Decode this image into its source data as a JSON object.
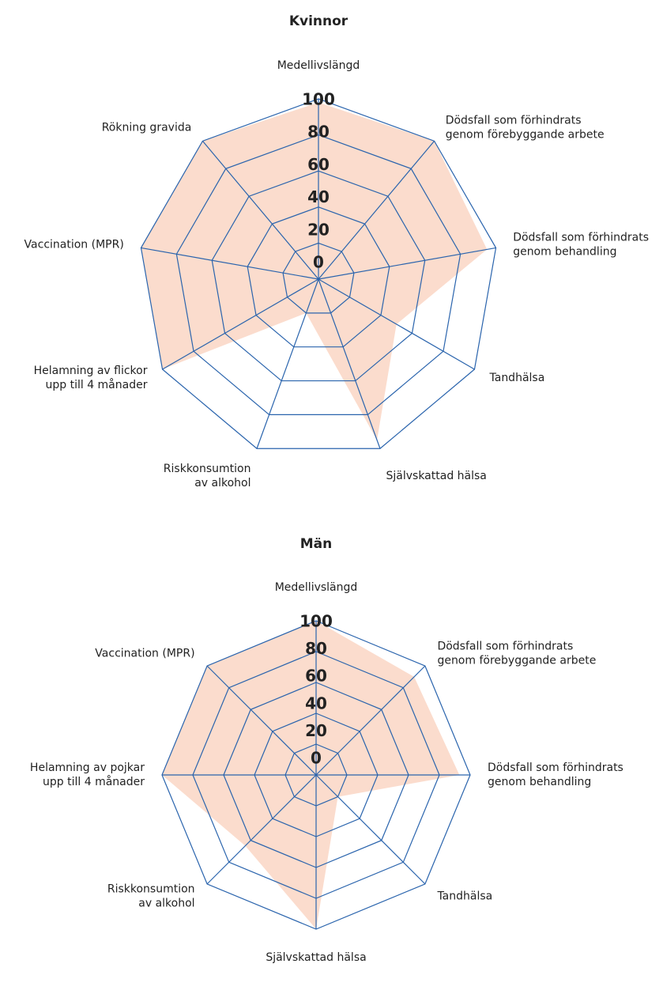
{
  "chart_data": [
    {
      "type": "radar",
      "title": "Kvinnor",
      "categories": [
        "Medellivslängd",
        "Dödsfall som förhindrats\ngenom förebyggande arbete",
        "Dödsfall som förhindrats\ngenom behandling",
        "Tandhälsa",
        "Självskattad hälsa",
        "Riskkonsumtion\nav alkohol",
        "Helamning av flickor\nupp till 4 månader",
        "Vaccination (MPR)",
        "Rökning gravida"
      ],
      "values": [
        98,
        100,
        95,
        50,
        95,
        20,
        100,
        100,
        100
      ],
      "color": "#fbdccd",
      "grid_color": "#2a64ad",
      "rlim": [
        0,
        100
      ],
      "rticks": [
        0,
        20,
        40,
        60,
        80,
        100
      ]
    },
    {
      "type": "radar",
      "title": "Män",
      "categories": [
        "Medellivslängd",
        "Dödsfall som förhindrats\ngenom förebyggande arbete",
        "Dödsfall som förhindrats\ngenom behandling",
        "Tandhälsa",
        "Självskattad hälsa",
        "Riskkonsumtion\nav alkohol",
        "Helamning av pojkar\nupp till 4 månader",
        "Vaccination (MPR)"
      ],
      "values": [
        100,
        90,
        93,
        20,
        100,
        65,
        100,
        100
      ],
      "color": "#fbdccd",
      "grid_color": "#2a64ad",
      "rlim": [
        0,
        100
      ],
      "rticks": [
        0,
        20,
        40,
        60,
        80,
        100
      ]
    }
  ]
}
